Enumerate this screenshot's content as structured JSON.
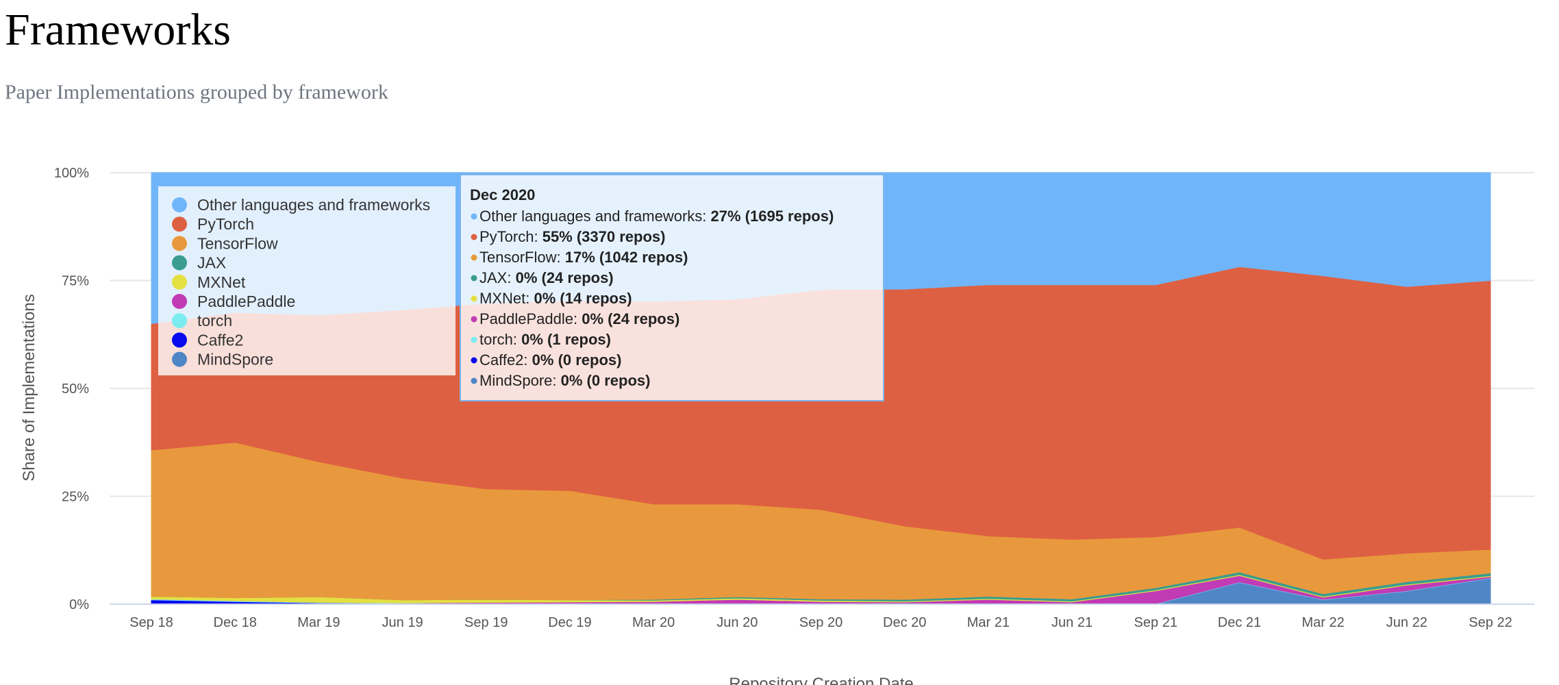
{
  "header": {
    "title": "Frameworks",
    "subtitle": "Paper Implementations grouped by framework"
  },
  "chart_data": {
    "type": "area",
    "stacking": "percent",
    "xlabel": "Repository Creation Date",
    "ylabel": "Share of Implementations",
    "ylim": [
      0,
      100
    ],
    "y_ticks": [
      "0%",
      "25%",
      "50%",
      "75%",
      "100%"
    ],
    "categories": [
      "Sep 18",
      "Dec 18",
      "Mar 19",
      "Jun 19",
      "Sep 19",
      "Dec 19",
      "Mar 20",
      "Jun 20",
      "Sep 20",
      "Dec 20",
      "Mar 21",
      "Jun 21",
      "Sep 21",
      "Dec 21",
      "Mar 22",
      "Jun 22",
      "Sep 22"
    ],
    "grid": true,
    "legend_position": "top-left",
    "series": [
      {
        "name": "MindSpore",
        "color": "#4f86c6",
        "values": [
          0,
          0,
          0,
          0,
          0,
          0,
          0,
          0,
          0,
          0,
          0,
          0,
          0,
          5,
          1,
          3,
          6
        ]
      },
      {
        "name": "Caffe2",
        "color": "#0a0aee",
        "values": [
          1,
          0.6,
          0.3,
          0.2,
          0.1,
          0.1,
          0,
          0,
          0,
          0,
          0,
          0,
          0,
          0,
          0,
          0,
          0
        ]
      },
      {
        "name": "torch",
        "color": "#7cecf0",
        "values": [
          0.2,
          0.2,
          0.1,
          0.1,
          0.1,
          0.1,
          0.1,
          0.1,
          0.1,
          0.1,
          0.1,
          0.1,
          0.1,
          0.1,
          0.1,
          0.1,
          0.1
        ]
      },
      {
        "name": "PaddlePaddle",
        "color": "#c13bb5",
        "values": [
          0,
          0,
          0,
          0,
          0.2,
          0.3,
          0.5,
          1,
          0.5,
          0.4,
          1,
          0.4,
          3,
          1.5,
          0.5,
          1.3,
          0.3
        ]
      },
      {
        "name": "MXNet",
        "color": "#e4e042",
        "values": [
          0.6,
          0.7,
          1.3,
          0.7,
          0.7,
          0.5,
          0.3,
          0.3,
          0.3,
          0.2,
          0.2,
          0.2,
          0.2,
          0.2,
          0.2,
          0.2,
          0.2
        ]
      },
      {
        "name": "JAX",
        "color": "#3a9d8f",
        "values": [
          0,
          0,
          0,
          0,
          0,
          0,
          0.2,
          0.3,
          0.3,
          0.4,
          0.5,
          0.5,
          0.5,
          0.6,
          0.6,
          0.6,
          0.6
        ]
      },
      {
        "name": "TensorFlow",
        "color": "#e8993d",
        "values": [
          33.9,
          36.2,
          31.3,
          28.2,
          25.6,
          25.3,
          22.1,
          21.5,
          20.7,
          17,
          14,
          13.8,
          11.8,
          10.3,
          8,
          6.6,
          5.5
        ]
      },
      {
        "name": "PyTorch",
        "color": "#de6042",
        "values": [
          29.3,
          30.3,
          34,
          39,
          43,
          44,
          47,
          47.5,
          51,
          54.9,
          58.2,
          59,
          58.4,
          60.1,
          65.7,
          61.8,
          62.3
        ]
      },
      {
        "name": "Other languages and frameworks",
        "color": "#70b5f9",
        "values": [
          35,
          32.6,
          33,
          31.8,
          30.3,
          29.7,
          29.8,
          29.3,
          27.1,
          27,
          26,
          26,
          26,
          21.7,
          23.9,
          26.4,
          25
        ]
      }
    ],
    "legend_order": [
      "Other languages and frameworks",
      "PyTorch",
      "TensorFlow",
      "JAX",
      "MXNet",
      "PaddlePaddle",
      "torch",
      "Caffe2",
      "MindSpore"
    ],
    "tooltip": {
      "title": "Dec 2020",
      "rows": [
        {
          "name": "Other languages and frameworks",
          "value": "27% (1695 repos)"
        },
        {
          "name": "PyTorch",
          "value": "55% (3370 repos)"
        },
        {
          "name": "TensorFlow",
          "value": "17% (1042 repos)"
        },
        {
          "name": "JAX",
          "value": "0% (24 repos)"
        },
        {
          "name": "MXNet",
          "value": "0% (14 repos)"
        },
        {
          "name": "PaddlePaddle",
          "value": "0% (24 repos)"
        },
        {
          "name": "torch",
          "value": "0% (1 repos)"
        },
        {
          "name": "Caffe2",
          "value": "0% (0 repos)"
        },
        {
          "name": "MindSpore",
          "value": "0% (0 repos)"
        }
      ]
    }
  }
}
